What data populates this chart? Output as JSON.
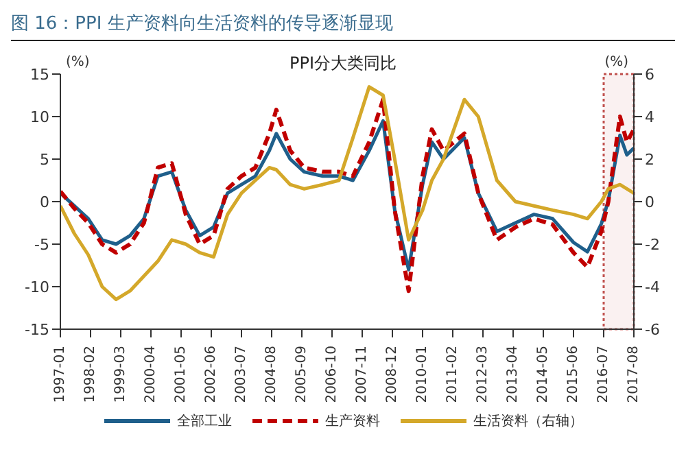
{
  "chart_data": {
    "type": "line",
    "title": "图 16：PPI 生产资料向生活资料的传导逐渐显现",
    "subtitle": "PPI分大类同比",
    "ylabel": "(%)",
    "y2label": "(%)",
    "x": [
      "1997-01",
      "1997-07",
      "1998-01",
      "1998-07",
      "1999-01",
      "1999-07",
      "2000-01",
      "2000-07",
      "2001-01",
      "2001-07",
      "2002-01",
      "2002-07",
      "2003-01",
      "2003-07",
      "2004-01",
      "2004-07",
      "2004-10",
      "2005-04",
      "2005-10",
      "2006-06",
      "2007-01",
      "2007-07",
      "2008-02",
      "2008-08",
      "2009-01",
      "2009-07",
      "2010-01",
      "2010-05",
      "2010-10",
      "2011-07",
      "2012-01",
      "2012-09",
      "2013-05",
      "2014-01",
      "2014-09",
      "2015-06",
      "2015-12",
      "2016-06",
      "2016-09",
      "2017-02",
      "2017-05",
      "2017-08"
    ],
    "xlim": [
      "1997-01",
      "2017-08"
    ],
    "xticks": [
      "1997-01",
      "1998-02",
      "1999-03",
      "2000-04",
      "2001-05",
      "2002-06",
      "2003-07",
      "2004-08",
      "2005-09",
      "2006-10",
      "2007-11",
      "2008-12",
      "2010-01",
      "2011-02",
      "2012-03",
      "2013-04",
      "2014-05",
      "2015-06",
      "2016-07",
      "2017-08"
    ],
    "ylim": [
      -15,
      15
    ],
    "yticks": [
      -15,
      -10,
      -5,
      0,
      5,
      10,
      15
    ],
    "y2lim": [
      -6,
      6
    ],
    "y2ticks": [
      -6,
      -4,
      -2,
      0,
      2,
      4,
      6
    ],
    "series": [
      {
        "name": "全部工业",
        "color": "#1f5f8b",
        "line_style": "solid",
        "values": [
          1,
          -0.5,
          -2,
          -4.5,
          -5,
          -4,
          -2,
          3,
          3.5,
          -1,
          -4,
          -3,
          1,
          2,
          3,
          6,
          8,
          5,
          3.5,
          3,
          3,
          2.5,
          6,
          9.5,
          -1,
          -8,
          2,
          7,
          5,
          7.5,
          1,
          -3.5,
          -2.5,
          -1.5,
          -2,
          -4.8,
          -5.9,
          -2.6,
          0.1,
          7.8,
          5.5,
          6.3
        ]
      },
      {
        "name": "生产资料",
        "color": "#c00000",
        "line_style": "dashed",
        "values": [
          1.2,
          -0.8,
          -2.5,
          -5,
          -6,
          -5,
          -2.5,
          4,
          4.5,
          -1.5,
          -5,
          -4,
          1.5,
          3,
          4,
          8,
          10.8,
          6,
          4,
          3.5,
          3.5,
          3,
          7,
          12,
          -1,
          -10.5,
          3,
          8.5,
          6,
          8,
          1,
          -4.5,
          -3,
          -2,
          -2.7,
          -6,
          -7.7,
          -3.5,
          0,
          10,
          7,
          8.5
        ]
      },
      {
        "name": "生活资料（右轴）",
        "color": "#d4a82a",
        "line_style": "solid",
        "axis": "y2",
        "values": [
          -0.2,
          -1.5,
          -2.5,
          -4,
          -4.6,
          -4.2,
          -3.5,
          -2.8,
          -1.8,
          -2,
          -2.4,
          -2.6,
          -0.6,
          0.4,
          1,
          1.6,
          1.5,
          0.8,
          0.6,
          0.8,
          1,
          3,
          5.4,
          5,
          2,
          -1.8,
          -0.4,
          1,
          2,
          4.8,
          4,
          1,
          0,
          -0.2,
          -0.4,
          -0.6,
          -0.8,
          0,
          0.6,
          0.8,
          0.6,
          0.4
        ]
      }
    ],
    "bands": [
      {
        "axis": "x",
        "from": "2016-07",
        "to": "2017-08",
        "color": "#c0504d"
      }
    ],
    "grid": false,
    "legend": "bottom",
    "marker": "none"
  }
}
